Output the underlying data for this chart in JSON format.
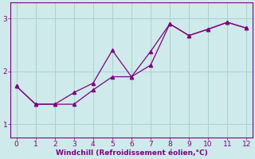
{
  "series1_x": [
    0,
    1,
    2,
    3,
    4,
    5,
    6,
    7,
    8,
    9,
    10,
    11,
    12
  ],
  "series1_y": [
    1.72,
    1.38,
    1.38,
    1.38,
    1.65,
    1.9,
    1.9,
    2.12,
    2.9,
    2.68,
    2.8,
    2.93,
    2.82
  ],
  "series2_x": [
    0,
    1,
    2,
    3,
    4,
    5,
    6,
    7,
    8,
    9,
    10,
    11,
    12
  ],
  "series2_y": [
    1.72,
    1.38,
    1.38,
    1.6,
    1.78,
    2.4,
    1.9,
    2.38,
    2.9,
    2.68,
    2.8,
    2.93,
    2.82
  ],
  "line_color": "#800080",
  "bg_color": "#ceeaea",
  "grid_color": "#aed0d0",
  "xlabel": "Windchill (Refroidissement éolien,°C)",
  "xlim": [
    -0.3,
    12.3
  ],
  "ylim": [
    0.75,
    3.3
  ],
  "yticks": [
    1,
    2,
    3
  ],
  "xticks": [
    0,
    1,
    2,
    3,
    4,
    5,
    6,
    7,
    8,
    9,
    10,
    11,
    12
  ],
  "xlabel_color": "#800080",
  "xlabel_fontsize": 6.5,
  "tick_fontsize": 6.5,
  "marker": "^",
  "markersize": 3,
  "linewidth": 0.9
}
